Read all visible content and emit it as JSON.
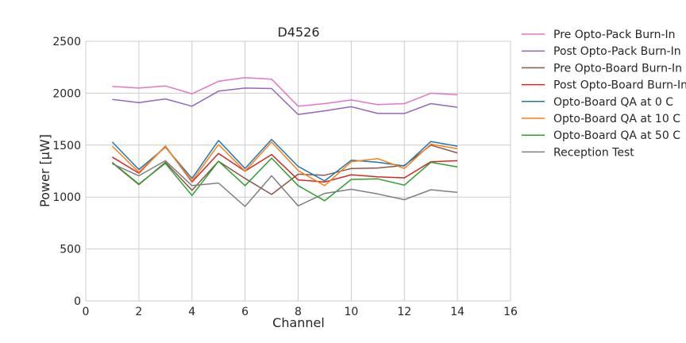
{
  "chart_data": {
    "type": "line",
    "title": "D4526",
    "xlabel": "Channel",
    "ylabel": "Power [μW]",
    "xlim": [
      0,
      16
    ],
    "ylim": [
      0,
      2500
    ],
    "xticks": [
      "0",
      "2",
      "4",
      "6",
      "8",
      "10",
      "12",
      "14",
      "16"
    ],
    "yticks": [
      "0",
      "500",
      "1000",
      "1500",
      "2000",
      "2500"
    ],
    "grid": true,
    "legend_position": "outside-right",
    "x": [
      1,
      2,
      3,
      4,
      5,
      6,
      7,
      8,
      9,
      10,
      11,
      12,
      13,
      14
    ],
    "series": [
      {
        "name": "Pre Opto-Pack Burn-In",
        "color": "#e377c2",
        "values": [
          2065,
          2050,
          2070,
          1995,
          2115,
          2150,
          2135,
          1875,
          1900,
          1935,
          1890,
          1900,
          2000,
          1985
        ]
      },
      {
        "name": "Post Opto-Pack Burn-In",
        "color": "#9467bd",
        "values": [
          1940,
          1910,
          1945,
          1875,
          2020,
          2050,
          2045,
          1795,
          1830,
          1870,
          1805,
          1805,
          1900,
          1865
        ]
      },
      {
        "name": "Pre Opto-Board Burn-In",
        "color": "#8c564b",
        "values": [
          1330,
          1120,
          1335,
          1065,
          1345,
          1180,
          1025,
          1220,
          1210,
          1275,
          1280,
          1305,
          1500,
          1425
        ]
      },
      {
        "name": "Post Opto-Board Burn-In",
        "color": "#d62728",
        "values": [
          1385,
          1230,
          1490,
          1145,
          1420,
          1250,
          1410,
          1165,
          1145,
          1215,
          1195,
          1185,
          1340,
          1350
        ]
      },
      {
        "name": "Opto-Board QA at 0 C",
        "color": "#1f77b4",
        "values": [
          1530,
          1265,
          1480,
          1180,
          1545,
          1275,
          1555,
          1295,
          1155,
          1355,
          1335,
          1300,
          1535,
          1490
        ]
      },
      {
        "name": "Opto-Board QA at 10 C",
        "color": "#ff7f0e",
        "values": [
          1490,
          1240,
          1485,
          1155,
          1505,
          1250,
          1530,
          1255,
          1110,
          1340,
          1370,
          1275,
          1510,
          1465
        ]
      },
      {
        "name": "Opto-Board QA at 50 C",
        "color": "#2ca02c",
        "values": [
          1335,
          1125,
          1325,
          1015,
          1345,
          1110,
          1375,
          1110,
          965,
          1170,
          1175,
          1115,
          1335,
          1290
        ]
      },
      {
        "name": "Reception Test",
        "color": "#7f7f7f",
        "values": [
          1320,
          1205,
          1350,
          1110,
          1135,
          910,
          1205,
          915,
          1035,
          1075,
          1030,
          975,
          1070,
          1045
        ]
      }
    ]
  }
}
